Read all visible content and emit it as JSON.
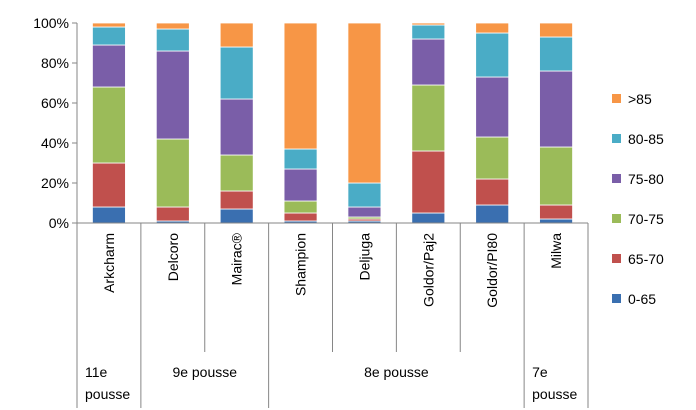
{
  "chart_data": {
    "type": "bar",
    "stacked": true,
    "percent": true,
    "title": "",
    "xlabel": "",
    "ylabel": "",
    "ylim": [
      0,
      100
    ],
    "yticks": [
      "0%",
      "20%",
      "40%",
      "60%",
      "80%",
      "100%"
    ],
    "grid": false,
    "legend_position": "right",
    "categories": [
      "Arkcharm",
      "Delcoro",
      "Mairac®",
      "Shampion",
      "Deljuga",
      "Goldor/Paj2",
      "Goldor/PI80",
      "Milwa"
    ],
    "groups": [
      {
        "label": "11e pousse",
        "count": 1
      },
      {
        "label": "9e pousse",
        "count": 2
      },
      {
        "label": "8e pousse",
        "count": 4
      },
      {
        "label": "7e pousse",
        "count": 1
      }
    ],
    "series": [
      {
        "name": "0-65",
        "color": "#3a6fb0",
        "values": [
          8,
          1,
          7,
          1,
          1,
          5,
          9,
          2
        ]
      },
      {
        "name": "65-70",
        "color": "#c0504d",
        "values": [
          22,
          7,
          9,
          4,
          1,
          31,
          13,
          7
        ]
      },
      {
        "name": "70-75",
        "color": "#9bbb59",
        "values": [
          38,
          34,
          18,
          6,
          1,
          33,
          21,
          29
        ]
      },
      {
        "name": "75-80",
        "color": "#7a5ea8",
        "values": [
          21,
          44,
          28,
          16,
          5,
          23,
          30,
          38
        ]
      },
      {
        "name": "80-85",
        "color": "#4aacc6",
        "values": [
          9,
          11,
          26,
          10,
          12,
          7,
          22,
          17
        ]
      },
      {
        "name": ">85",
        "color": "#f79646",
        "values": [
          2,
          3,
          12,
          63,
          80,
          1,
          5,
          7
        ]
      }
    ]
  }
}
